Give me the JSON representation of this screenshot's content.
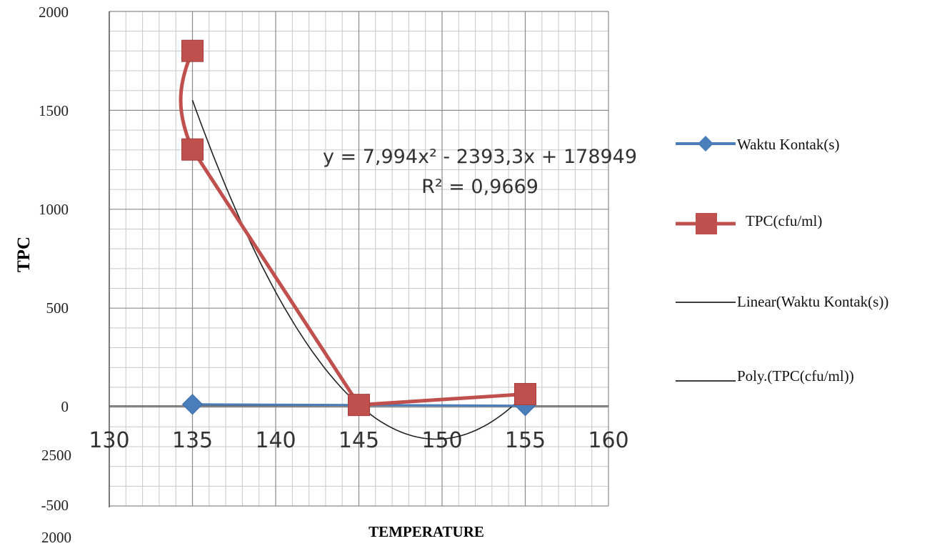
{
  "chart_data": {
    "type": "line",
    "xlabel": "TEMPERATURE",
    "ylabel": "TPC",
    "xlim": [
      130,
      160
    ],
    "ylim": [
      -500,
      2000
    ],
    "x_ticks": [
      "130",
      "135",
      "140",
      "145",
      "150",
      "155",
      "160"
    ],
    "y_ticks": [
      "2000",
      "1500",
      "1000",
      "500",
      "0",
      "-500"
    ],
    "y_ticks_extra": [
      "2500",
      "2000"
    ],
    "grid": true,
    "legend_position": "right",
    "series": [
      {
        "name": "Waktu Kontak(s)",
        "x": [
          135,
          155
        ],
        "y": [
          8,
          1
        ],
        "color": "#4a7ebb",
        "marker": "diamond"
      },
      {
        "name": "TPC(cfu/ml)",
        "x": [
          135,
          135,
          145,
          155
        ],
        "y": [
          1800,
          1300,
          5,
          60
        ],
        "color": "#c0504d",
        "marker": "square"
      }
    ],
    "trendlines": [
      {
        "name": "Linear(Waktu Kontak(s))",
        "type": "linear",
        "color": "#1f3864"
      },
      {
        "name": "Poly.(TPC(cfu/ml))",
        "type": "polynomial",
        "color": "#222222"
      }
    ],
    "annotations": {
      "equation": "y = 7,994x² - 2393,3x + 178949",
      "r_squared": "R² = 0,9669"
    }
  }
}
